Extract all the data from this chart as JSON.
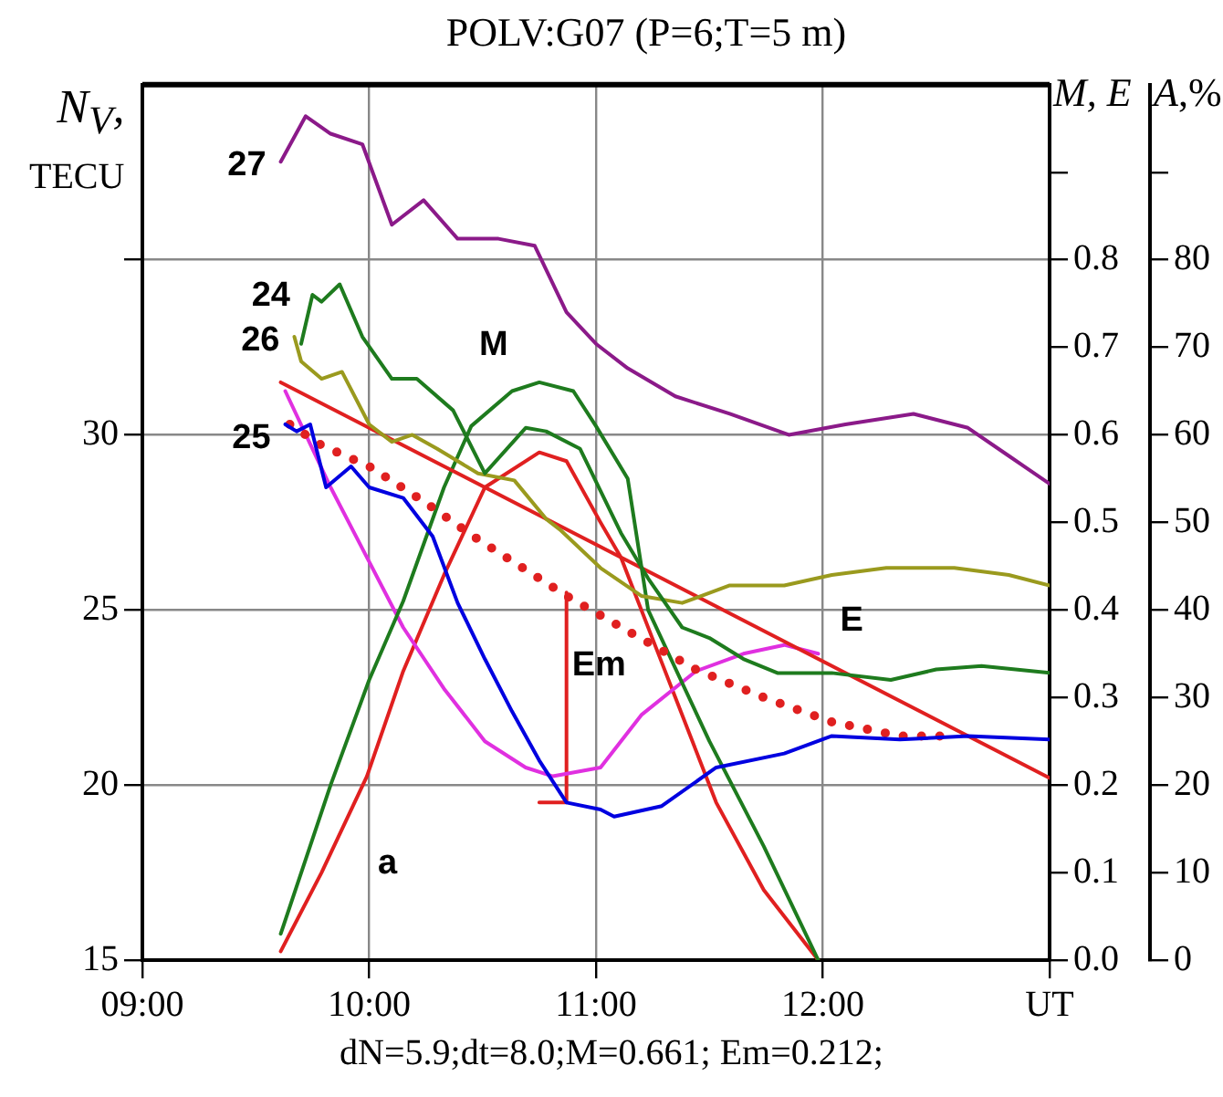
{
  "chart_data": {
    "type": "line",
    "title": "POLV:G07 (P=6;T=5 m)",
    "ylabel": "N$_{V}$, TECU",
    "y2label": "M, E",
    "y3label": "A,%",
    "annotations": [
      "dN=5.9;dt=8.0;M=0.661; Em=0.212;"
    ],
    "xlim": [
      9,
      13
    ],
    "xticks": [
      {
        "value": 9,
        "label": "09:00"
      },
      {
        "value": 10,
        "label": "10:00"
      },
      {
        "value": 11,
        "label": "11:00"
      },
      {
        "value": 12,
        "label": "12:00"
      },
      {
        "value": 13,
        "label": "UT"
      }
    ],
    "ylim": [
      15,
      40
    ],
    "yticks": [
      15,
      20,
      25,
      30,
      {
        "value": 35,
        "label": null
      }
    ],
    "y2lim": [
      0,
      1
    ],
    "y2ticks": [
      {
        "value": 0,
        "label": "0.0"
      },
      0.1,
      0.2,
      0.3,
      0.4,
      0.5,
      0.6,
      0.7,
      0.8,
      {
        "value": 0.9,
        "label": null
      }
    ],
    "y3lim": [
      0,
      100
    ],
    "y3ticks": [
      0,
      10,
      20,
      30,
      40,
      50,
      60,
      70,
      80,
      {
        "value": 90,
        "label": null
      }
    ],
    "grid": true,
    "legend": false,
    "marker": "none",
    "series": [
      {
        "name": "27",
        "color": "#8b1a89",
        "x": [
          9.61,
          9.72,
          9.83,
          9.97,
          10.1,
          10.24,
          10.39,
          10.57,
          10.73,
          10.87,
          11.0,
          11.14,
          11.35,
          11.59,
          11.85,
          12.1,
          12.4,
          12.64,
          12.82,
          13.0
        ],
        "values": [
          37.8,
          39.1,
          38.6,
          38.3,
          36.0,
          36.7,
          35.6,
          35.6,
          35.4,
          33.5,
          32.6,
          31.9,
          31.1,
          30.6,
          30.0,
          30.3,
          30.6,
          30.2,
          29.4,
          28.6
        ]
      },
      {
        "name": "24",
        "color": "#1e7b1e",
        "x": [
          9.7,
          9.75,
          9.79,
          9.87,
          9.97,
          10.1,
          10.21,
          10.37,
          10.51,
          10.69,
          10.78,
          10.93,
          11.02,
          11.11,
          11.23,
          11.38,
          11.5,
          11.65,
          11.8,
          11.9,
          12.04,
          12.3,
          12.5,
          12.7,
          13.0
        ],
        "values": [
          32.6,
          34.0,
          33.8,
          34.3,
          32.8,
          31.6,
          31.6,
          30.7,
          28.9,
          30.2,
          30.1,
          29.6,
          28.4,
          27.2,
          25.9,
          24.5,
          24.2,
          23.6,
          23.2,
          23.2,
          23.2,
          23.0,
          23.3,
          23.4,
          23.2
        ]
      },
      {
        "name": "26",
        "color": "#9a9a1e",
        "x": [
          9.67,
          9.7,
          9.79,
          9.88,
          10.0,
          10.1,
          10.19,
          10.3,
          10.48,
          10.64,
          10.78,
          10.84,
          11.02,
          11.2,
          11.38,
          11.59,
          11.83,
          12.04,
          12.28,
          12.58,
          12.82,
          13.0
        ],
        "values": [
          32.8,
          32.1,
          31.6,
          31.8,
          30.3,
          29.8,
          30.0,
          29.6,
          28.9,
          28.7,
          27.6,
          27.3,
          26.2,
          25.4,
          25.2,
          25.7,
          25.7,
          26.0,
          26.2,
          26.2,
          26.0,
          25.7
        ]
      },
      {
        "name": "25",
        "color": "#0000e0",
        "x": [
          9.63,
          9.68,
          9.74,
          9.81,
          9.92,
          10.0,
          10.15,
          10.28,
          10.39,
          10.51,
          10.63,
          10.75,
          10.87,
          11.02,
          11.08,
          11.29,
          11.53,
          11.83,
          12.04,
          12.34,
          12.64,
          13.0
        ],
        "values": [
          30.3,
          30.1,
          30.3,
          28.5,
          29.1,
          28.5,
          28.2,
          27.1,
          25.2,
          23.6,
          22.1,
          20.7,
          19.5,
          19.3,
          19.1,
          19.4,
          20.5,
          20.9,
          21.4,
          21.3,
          21.4,
          21.3
        ]
      },
      {
        "color": "#e02020",
        "line_style": "dotted",
        "x": [
          9.65,
          9.79,
          10.0,
          10.24,
          10.46,
          10.75,
          10.87,
          11.14,
          11.44,
          11.74,
          12.04,
          12.34,
          12.58
        ],
        "values": [
          30.3,
          29.7,
          29.1,
          28.1,
          27.1,
          25.9,
          25.4,
          24.4,
          23.3,
          22.5,
          21.8,
          21.4,
          21.4
        ]
      },
      {
        "color": "#e02020",
        "x": [
          9.61,
          13.0
        ],
        "values": [
          31.5,
          20.2
        ]
      },
      {
        "name": "M",
        "color": "#1e7b1e",
        "axis": "y2",
        "x": [
          9.61,
          9.83,
          10.0,
          10.15,
          10.33,
          10.45,
          10.63,
          10.75,
          10.9,
          11.0,
          11.14,
          11.23,
          11.5,
          11.74,
          11.98
        ],
        "values": [
          0.03,
          0.2,
          0.32,
          0.41,
          0.54,
          0.61,
          0.65,
          0.66,
          0.65,
          0.61,
          0.55,
          0.4,
          0.25,
          0.13,
          0.0
        ]
      },
      {
        "name": "E",
        "color": "#e030e0",
        "axis": "y2",
        "x": [
          9.63,
          9.83,
          9.97,
          10.15,
          10.33,
          10.51,
          10.69,
          10.81,
          11.02,
          11.2,
          11.44,
          11.65,
          11.83,
          11.98
        ],
        "values": [
          0.65,
          0.54,
          0.47,
          0.38,
          0.31,
          0.25,
          0.22,
          0.21,
          0.22,
          0.28,
          0.33,
          0.35,
          0.36,
          0.35
        ]
      },
      {
        "name": "a",
        "color": "#e02020",
        "axis": "y3",
        "x": [
          9.61,
          9.79,
          9.99,
          10.15,
          10.33,
          10.51,
          10.75,
          10.87,
          11.02,
          11.11,
          11.29,
          11.53,
          11.74,
          11.98
        ],
        "values": [
          1,
          10,
          21,
          33,
          44,
          54,
          58,
          57,
          50,
          46,
          34,
          18,
          8,
          0
        ]
      },
      {
        "name": "Em",
        "color": "#e02020",
        "axis": "y2",
        "x": [
          10.75,
          10.87,
          10.87
        ],
        "values": [
          0.18,
          0.18,
          0.42
        ]
      }
    ]
  }
}
